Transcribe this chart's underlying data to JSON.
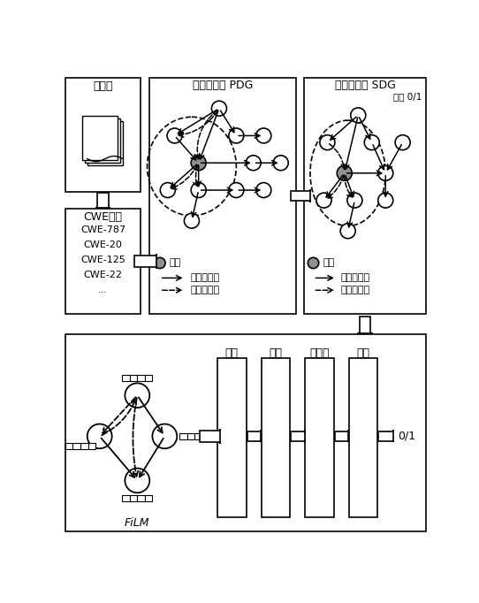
{
  "bg_color": "#ffffff",
  "src_label": "源代码",
  "pdg_label": "程序依赖图 PDG",
  "sdg_label": "切片依赖图 SDG",
  "sdg_tag": "标签 0/1",
  "cwe_label": "CWE分类",
  "cwe_items": [
    "CWE-787",
    "CWE-20",
    "CWE-125",
    "CWE-22",
    "..."
  ],
  "legend_cut": "切点",
  "legend_ctrl": "控制依赖边",
  "legend_data": "数据依赖边",
  "film_label": "FiLM",
  "cnn_labels": [
    "卷积",
    "池化",
    "全连接",
    "分类"
  ],
  "output_label": "0/1",
  "node_gray": "#909090",
  "node_white": "#ffffff",
  "node_edge": "#000000"
}
